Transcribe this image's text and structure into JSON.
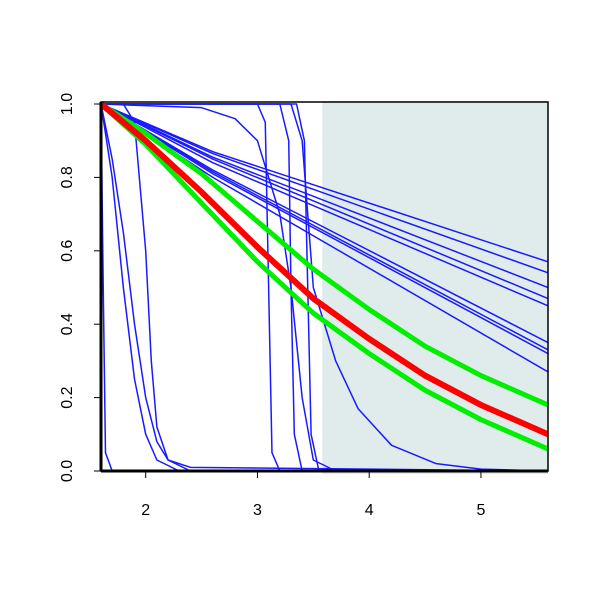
{
  "chart_data": {
    "type": "line",
    "xlim": [
      1.6,
      5.6
    ],
    "ylim": [
      0,
      1
    ],
    "xticks": [
      2,
      3,
      4,
      5
    ],
    "yticks": [
      {
        "value": 0,
        "label": "0.0"
      },
      0.2,
      0.4,
      0.6,
      0.8,
      {
        "value": 1,
        "label": "1.0"
      }
    ],
    "shaded_region": {
      "xlim": [
        3.58,
        5.6
      ],
      "color": "#e0ecec"
    },
    "series": [
      {
        "color": "#1a1aff",
        "line_width": 1.5,
        "x": [
          1.6,
          2.6,
          5.6
        ],
        "values": [
          1,
          0.87,
          0.57
        ]
      },
      {
        "color": "#1a1aff",
        "line_width": 1.5,
        "x": [
          1.6,
          2.6,
          5.6
        ],
        "values": [
          1,
          0.865,
          0.54
        ]
      },
      {
        "color": "#1a1aff",
        "line_width": 1.5,
        "x": [
          1.6,
          2.6,
          5.6
        ],
        "values": [
          1,
          0.855,
          0.5
        ]
      },
      {
        "color": "#1a1aff",
        "line_width": 1.5,
        "x": [
          1.6,
          2.6,
          5.6
        ],
        "values": [
          1,
          0.85,
          0.47
        ]
      },
      {
        "color": "#1a1aff",
        "line_width": 1.5,
        "x": [
          1.6,
          2.6,
          5.6
        ],
        "values": [
          1,
          0.84,
          0.45
        ]
      },
      {
        "color": "#1a1aff",
        "line_width": 1.5,
        "x": [
          1.6,
          2.6,
          5.6
        ],
        "values": [
          1,
          0.82,
          0.35
        ]
      },
      {
        "color": "#1a1aff",
        "line_width": 1.5,
        "x": [
          1.6,
          2.6,
          5.6
        ],
        "values": [
          1,
          0.815,
          0.33
        ]
      },
      {
        "color": "#1a1aff",
        "line_width": 1.5,
        "x": [
          1.6,
          2.6,
          5.6
        ],
        "values": [
          1,
          0.81,
          0.32
        ]
      },
      {
        "color": "#1a1aff",
        "line_width": 1.5,
        "x": [
          1.6,
          2.6,
          5.6
        ],
        "values": [
          1,
          0.8,
          0.27
        ]
      },
      {
        "color": "#1a1aff",
        "line_width": 1.5,
        "x": [
          1.6,
          1.62,
          1.64,
          1.7,
          5.6
        ],
        "values": [
          1,
          0.5,
          0.05,
          0,
          0
        ]
      },
      {
        "color": "#1a1aff",
        "line_width": 1.5,
        "x": [
          1.6,
          1.7,
          1.8,
          1.9,
          2.0,
          2.1,
          2.3,
          5.6
        ],
        "values": [
          1,
          0.8,
          0.5,
          0.25,
          0.1,
          0.03,
          0,
          0
        ]
      },
      {
        "color": "#1a1aff",
        "line_width": 1.5,
        "x": [
          1.6,
          1.7,
          1.8,
          1.9,
          2.0,
          2.1,
          2.2,
          2.4,
          5.6
        ],
        "values": [
          1,
          0.85,
          0.65,
          0.4,
          0.2,
          0.08,
          0.03,
          0.01,
          0
        ]
      },
      {
        "color": "#1a1aff",
        "line_width": 1.5,
        "x": [
          1.6,
          1.8,
          1.9,
          2.0,
          2.05,
          2.1,
          2.2,
          2.4,
          5.6
        ],
        "values": [
          1,
          1,
          0.95,
          0.6,
          0.3,
          0.12,
          0.03,
          0,
          0
        ]
      },
      {
        "color": "#1a1aff",
        "line_width": 1.5,
        "x": [
          1.6,
          3.0,
          3.07,
          3.1,
          3.13,
          3.2,
          5.6
        ],
        "values": [
          1,
          1,
          0.95,
          0.5,
          0.05,
          0,
          0
        ]
      },
      {
        "color": "#1a1aff",
        "line_width": 1.5,
        "x": [
          1.6,
          3.2,
          3.28,
          3.3,
          3.33,
          3.4,
          5.6
        ],
        "values": [
          1,
          1,
          0.9,
          0.5,
          0.1,
          0,
          0
        ]
      },
      {
        "color": "#1a1aff",
        "line_width": 1.5,
        "x": [
          1.6,
          3.35,
          3.42,
          3.45,
          3.48,
          3.55,
          5.6
        ],
        "values": [
          1,
          1,
          0.9,
          0.5,
          0.1,
          0,
          0
        ]
      },
      {
        "color": "#1a1aff",
        "line_width": 1.5,
        "x": [
          1.6,
          2.5,
          2.8,
          3.0,
          3.2,
          3.3,
          3.4,
          3.5,
          3.7,
          5.6
        ],
        "values": [
          1,
          0.99,
          0.96,
          0.9,
          0.7,
          0.5,
          0.2,
          0.03,
          0,
          0
        ]
      },
      {
        "color": "#1a1aff",
        "line_width": 1.5,
        "x": [
          1.6,
          3.3,
          3.4,
          3.5,
          3.7,
          3.9,
          4.2,
          4.6,
          5.0,
          5.6
        ],
        "values": [
          1,
          1,
          0.9,
          0.5,
          0.3,
          0.17,
          0.07,
          0.02,
          0.005,
          0
        ]
      },
      {
        "color": "#00ee00",
        "line_width": 5,
        "x": [
          1.6,
          2.0,
          2.5,
          3.0,
          3.5,
          4.0,
          4.5,
          5.0,
          5.6
        ],
        "values": [
          1,
          0.92,
          0.81,
          0.68,
          0.55,
          0.44,
          0.34,
          0.26,
          0.18
        ]
      },
      {
        "color": "#00ee00",
        "line_width": 5,
        "x": [
          1.6,
          2.0,
          2.5,
          3.0,
          3.5,
          4.0,
          4.5,
          5.0,
          5.6
        ],
        "values": [
          1,
          0.89,
          0.73,
          0.57,
          0.43,
          0.32,
          0.22,
          0.14,
          0.06
        ]
      },
      {
        "color": "#ff0000",
        "line_width": 6,
        "x": [
          1.6,
          2.0,
          2.5,
          3.0,
          3.5,
          4.0,
          4.5,
          5.0,
          5.6
        ],
        "values": [
          1,
          0.9,
          0.76,
          0.61,
          0.47,
          0.36,
          0.26,
          0.18,
          0.1
        ]
      }
    ]
  }
}
